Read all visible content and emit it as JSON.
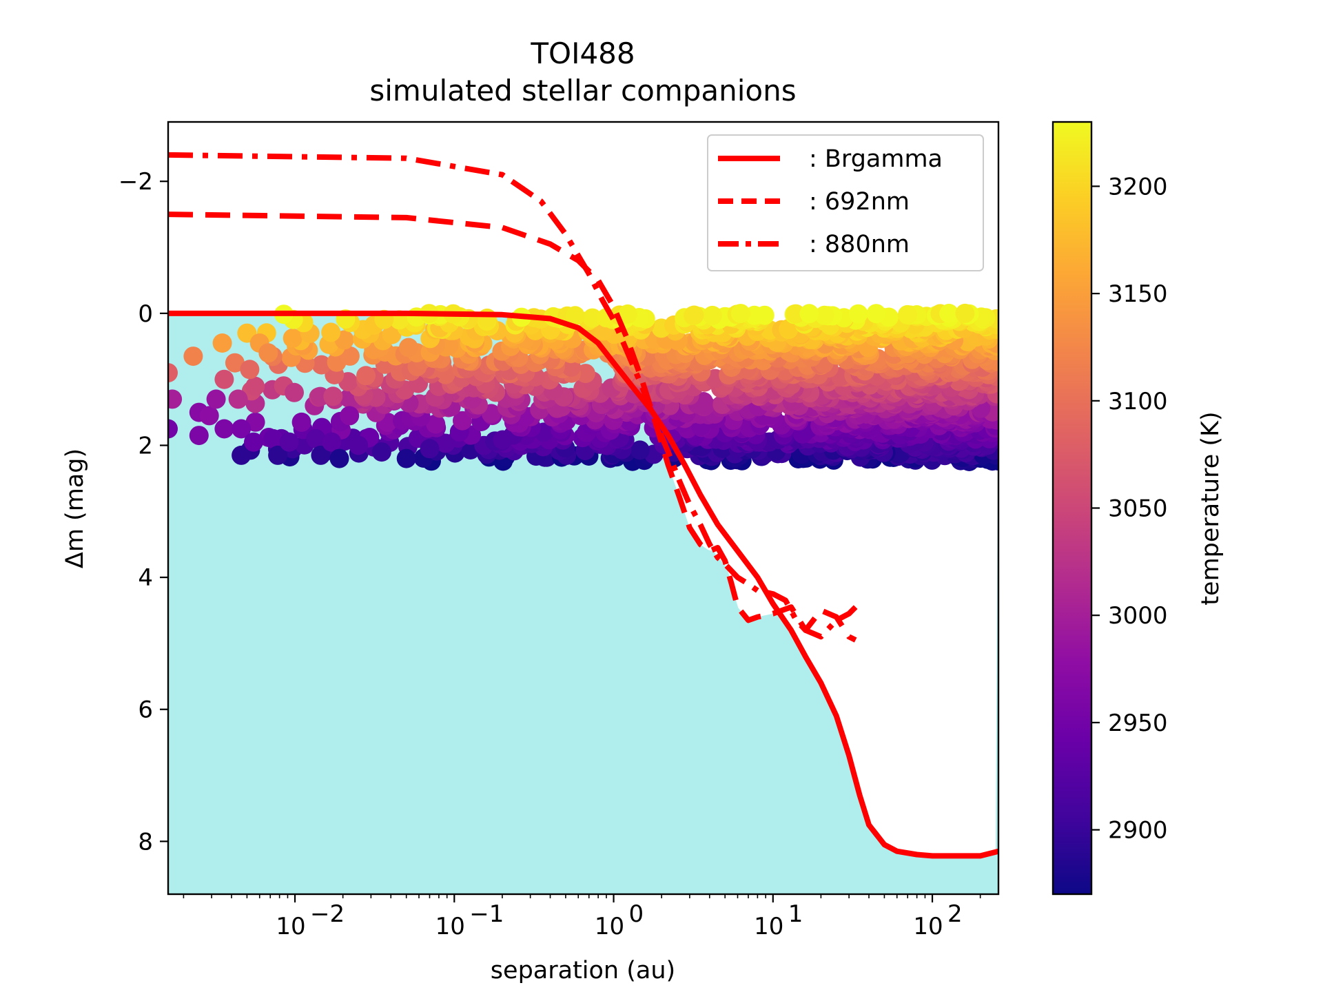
{
  "chart_data": {
    "type": "scatter",
    "title": "TOI488",
    "subtitle": "simulated stellar companions",
    "xlabel": "separation (au)",
    "ylabel": "Δm (mag)",
    "xscale": "log",
    "xlim": [
      0.0016,
      260
    ],
    "ylim": [
      8.8,
      -2.9
    ],
    "y_inverted": true,
    "xticks": [
      {
        "value": 0.01,
        "base": "10",
        "exp": "−2"
      },
      {
        "value": 0.1,
        "base": "10",
        "exp": "−1"
      },
      {
        "value": 1,
        "base": "10",
        "exp": "0"
      },
      {
        "value": 10,
        "base": "10",
        "exp": "1"
      },
      {
        "value": 100,
        "base": "10",
        "exp": "2"
      }
    ],
    "yticks": [
      {
        "value": -2,
        "label": "−2"
      },
      {
        "value": 0,
        "label": "0"
      },
      {
        "value": 2,
        "label": "2"
      },
      {
        "value": 4,
        "label": "4"
      },
      {
        "value": 6,
        "label": "6"
      },
      {
        "value": 8,
        "label": "8"
      }
    ],
    "shaded_region": {
      "color": "#b0eded",
      "description": "area below contrast curves"
    },
    "scatter": {
      "color_by": "temperature",
      "temp_range": [
        2870,
        3230
      ],
      "points": [
        [
          0.0016,
          0.9,
          3080
        ],
        [
          0.0017,
          1.3,
          3000
        ],
        [
          0.0016,
          1.75,
          2950
        ],
        [
          0.0023,
          0.65,
          3120
        ],
        [
          0.0025,
          1.5,
          2970
        ],
        [
          0.0025,
          1.85,
          2960
        ],
        [
          0.0029,
          1.55,
          2975
        ],
        [
          0.0032,
          1.3,
          2985
        ],
        [
          0.0035,
          0.45,
          3150
        ],
        [
          0.0036,
          1.0,
          3060
        ],
        [
          0.0036,
          1.75,
          2960
        ],
        [
          0.0042,
          0.75,
          3110
        ],
        [
          0.0044,
          1.3,
          3020
        ],
        [
          0.0046,
          1.75,
          2955
        ],
        [
          0.0046,
          2.15,
          2890
        ],
        [
          0.005,
          0.3,
          3180
        ],
        [
          0.0052,
          0.85,
          3090
        ],
        [
          0.0055,
          1.95,
          2940
        ],
        [
          0.006,
          0.45,
          3150
        ],
        [
          0.0068,
          0.6,
          3130
        ],
        [
          0.0073,
          1.9,
          2935
        ],
        [
          0.0078,
          2.15,
          2890
        ],
        [
          0.0085,
          1.1,
          3050
        ],
        [
          0.0092,
          1.95,
          2925
        ],
        [
          0.0099,
          1.2,
          3030
        ],
        [
          0.011,
          1.65,
          2960
        ],
        [
          0.0135,
          1.9,
          2925
        ],
        [
          0.0145,
          2.15,
          2890
        ],
        [
          0.017,
          1.95,
          2930
        ],
        [
          0.019,
          2.2,
          2880
        ],
        [
          0.022,
          1.55,
          2970
        ],
        [
          0.025,
          2.0,
          2920
        ],
        [
          0.035,
          2.1,
          2900
        ],
        [
          0.05,
          2.2,
          2880
        ],
        [
          0.07,
          2.05,
          2905
        ]
      ],
      "band": {
        "x_from": 0.005,
        "x_to": 260,
        "dm_from": 0.0,
        "dm_to": 2.25
      }
    },
    "legend": {
      "position": "top-right",
      "entries": [
        ": Brgamma",
        ": 692nm",
        ": 880nm"
      ]
    },
    "series": [
      {
        "name": ": Brgamma",
        "style": "solid",
        "color": "#ff0000",
        "x": [
          0.0016,
          0.05,
          0.2,
          0.4,
          0.6,
          0.8,
          1.0,
          1.3,
          1.7,
          2.2,
          2.8,
          3.5,
          4.5,
          6,
          8,
          10,
          13,
          16,
          20,
          25,
          30,
          35,
          40,
          50,
          60,
          80,
          100,
          150,
          200,
          260
        ],
        "y": [
          0.0,
          0.0,
          0.02,
          0.08,
          0.22,
          0.45,
          0.75,
          1.1,
          1.45,
          1.85,
          2.3,
          2.75,
          3.2,
          3.6,
          4.0,
          4.4,
          4.8,
          5.2,
          5.6,
          6.1,
          6.7,
          7.3,
          7.75,
          8.05,
          8.15,
          8.2,
          8.22,
          8.22,
          8.22,
          8.15
        ]
      },
      {
        "name": ": 692nm",
        "style": "dashed",
        "color": "#ff0000",
        "x": [
          0.0016,
          0.05,
          0.2,
          0.4,
          0.6,
          0.8,
          1.0,
          1.2,
          1.5,
          1.8,
          2.2,
          2.6,
          3.0,
          3.5,
          4.0,
          4.5,
          5.0,
          5.5,
          6.0,
          7.0,
          8.0,
          10,
          13,
          16,
          20,
          25,
          30,
          33
        ],
        "y": [
          -1.5,
          -1.45,
          -1.3,
          -1.05,
          -0.8,
          -0.5,
          -0.1,
          0.35,
          1.0,
          1.6,
          2.3,
          2.8,
          3.25,
          3.5,
          3.6,
          3.55,
          3.75,
          4.1,
          4.45,
          4.65,
          4.6,
          4.55,
          4.45,
          4.8,
          4.5,
          4.6,
          4.9,
          4.95
        ]
      },
      {
        "name": ": 880nm",
        "style": "dashdot",
        "color": "#ff0000",
        "x": [
          0.0016,
          0.05,
          0.2,
          0.35,
          0.5,
          0.7,
          0.85,
          1.0,
          1.2,
          1.5,
          1.8,
          2.2,
          2.6,
          3.0,
          3.5,
          4.0,
          4.5,
          5.0,
          6.0,
          7.0,
          8.0,
          10,
          12,
          14,
          16,
          20,
          25,
          30,
          33
        ],
        "y": [
          -2.4,
          -2.35,
          -2.1,
          -1.7,
          -1.2,
          -0.6,
          -0.2,
          0.1,
          0.55,
          1.1,
          1.6,
          2.1,
          2.55,
          2.9,
          3.2,
          3.5,
          3.7,
          3.8,
          4.0,
          4.1,
          4.2,
          4.25,
          4.35,
          4.65,
          4.8,
          4.9,
          4.65,
          4.55,
          4.45
        ]
      }
    ],
    "colorbar": {
      "label": "temperature (K)",
      "min": 2870,
      "max": 3230,
      "ticks": [
        2900,
        2950,
        3000,
        3050,
        3100,
        3150,
        3200
      ]
    }
  }
}
